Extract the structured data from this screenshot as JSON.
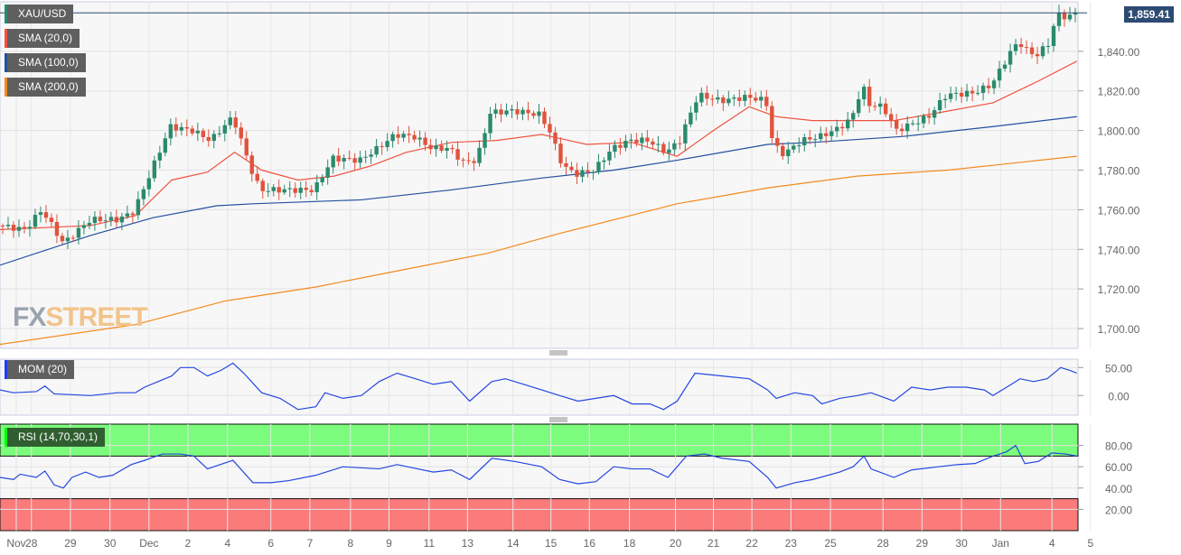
{
  "symbol": "XAU/USD",
  "current_price": "1,859.41",
  "logo_text": "FXSTREET",
  "legends": {
    "sma20": "SMA (20,0)",
    "sma100": "SMA (100,0)",
    "sma200": "SMA (200,0)",
    "mom": "MOM (20)",
    "rsi": "RSI (14,70,30,1)"
  },
  "colors": {
    "up": "#2b8a6e",
    "down": "#e0533d",
    "sma20": "#ef5340",
    "sma100": "#2450a0",
    "sma200": "#f38a1e",
    "mom": "#2447e0",
    "rsi": "#2447e0",
    "rsi_over": "#7cfc7c",
    "rsi_under": "#fb7a7a"
  },
  "chart_data": [
    {
      "type": "candlestick",
      "title": "XAU/USD",
      "ylim": [
        1690,
        1865
      ],
      "xlim": [
        0,
        199
      ],
      "y_ticks": [
        "1,700.00",
        "1,720.00",
        "1,740.00",
        "1,760.00",
        "1,780.00",
        "1,800.00",
        "1,820.00",
        "1,840.00"
      ],
      "y_tick_values": [
        1700,
        1720,
        1740,
        1760,
        1780,
        1800,
        1820,
        1840
      ],
      "close_path": [
        [
          0,
          1752
        ],
        [
          5,
          1750
        ],
        [
          8,
          1760
        ],
        [
          12,
          1743
        ],
        [
          17,
          1755
        ],
        [
          22,
          1755
        ],
        [
          25,
          1759
        ],
        [
          27.5,
          1775
        ],
        [
          31.7,
          1802
        ],
        [
          35.8,
          1800
        ],
        [
          39.2,
          1795
        ],
        [
          43.3,
          1807
        ],
        [
          46.7,
          1780
        ],
        [
          48.3,
          1770
        ],
        [
          53.3,
          1770
        ],
        [
          58.3,
          1770
        ],
        [
          61.7,
          1786
        ],
        [
          66.7,
          1785
        ],
        [
          70,
          1791
        ],
        [
          73.3,
          1798
        ],
        [
          76.7,
          1797
        ],
        [
          80,
          1791
        ],
        [
          83.3,
          1791
        ],
        [
          85.8,
          1784
        ],
        [
          88.3,
          1785
        ],
        [
          90.8,
          1809
        ],
        [
          95,
          1810
        ],
        [
          100,
          1808
        ],
        [
          101.7,
          1800
        ],
        [
          104.2,
          1782
        ],
        [
          106.7,
          1778
        ],
        [
          110,
          1780
        ],
        [
          113.3,
          1791
        ],
        [
          116.7,
          1795
        ],
        [
          120,
          1795
        ],
        [
          123.3,
          1789
        ],
        [
          125.8,
          1795
        ],
        [
          127.5,
          1807
        ],
        [
          129.2,
          1818
        ],
        [
          133.3,
          1815
        ],
        [
          138.3,
          1817
        ],
        [
          141.7,
          1815
        ],
        [
          143,
          1793
        ],
        [
          145,
          1788
        ],
        [
          148.3,
          1795
        ],
        [
          151.7,
          1797
        ],
        [
          155,
          1801
        ],
        [
          157.5,
          1806
        ],
        [
          159.5,
          1823
        ],
        [
          160.8,
          1813
        ],
        [
          163.3,
          1812
        ],
        [
          165.8,
          1800
        ],
        [
          168.3,
          1803
        ],
        [
          171.7,
          1807
        ],
        [
          175,
          1818
        ],
        [
          180,
          1819
        ],
        [
          183.3,
          1823
        ],
        [
          186.7,
          1839
        ],
        [
          188.3,
          1845
        ],
        [
          190,
          1840
        ],
        [
          191.7,
          1838
        ],
        [
          194.2,
          1845
        ],
        [
          195.3,
          1859
        ],
        [
          197.5,
          1857
        ],
        [
          198.8,
          1859.41
        ]
      ],
      "sma20": [
        [
          0,
          1750
        ],
        [
          16.7,
          1752
        ],
        [
          25,
          1757
        ],
        [
          31.7,
          1775
        ],
        [
          38.3,
          1779
        ],
        [
          43.3,
          1789
        ],
        [
          48.3,
          1780
        ],
        [
          55,
          1775
        ],
        [
          61.7,
          1777
        ],
        [
          68.3,
          1782
        ],
        [
          75,
          1789
        ],
        [
          83.3,
          1794
        ],
        [
          91.7,
          1795
        ],
        [
          100,
          1798
        ],
        [
          108.3,
          1793
        ],
        [
          116.7,
          1794
        ],
        [
          125,
          1787
        ],
        [
          131.7,
          1800
        ],
        [
          138.3,
          1812
        ],
        [
          143.3,
          1807
        ],
        [
          150,
          1805
        ],
        [
          158.3,
          1805
        ],
        [
          165,
          1805
        ],
        [
          173.3,
          1809
        ],
        [
          183.3,
          1814
        ],
        [
          191.7,
          1825
        ],
        [
          198.8,
          1835
        ]
      ],
      "sma100": [
        [
          0,
          1732
        ],
        [
          16.7,
          1747
        ],
        [
          28.3,
          1756
        ],
        [
          40,
          1762
        ],
        [
          46.7,
          1763
        ],
        [
          66.7,
          1765
        ],
        [
          83.3,
          1770
        ],
        [
          100,
          1776
        ],
        [
          113.3,
          1780
        ],
        [
          125,
          1785
        ],
        [
          141.7,
          1793
        ],
        [
          150,
          1794
        ],
        [
          166.7,
          1797
        ],
        [
          183.3,
          1802
        ],
        [
          198.8,
          1807
        ]
      ],
      "sma200": [
        [
          0,
          1692
        ],
        [
          25,
          1702
        ],
        [
          41.7,
          1714
        ],
        [
          58.3,
          1721
        ],
        [
          75,
          1730
        ],
        [
          90,
          1738
        ],
        [
          103.3,
          1748
        ],
        [
          125,
          1763
        ],
        [
          141.7,
          1771
        ],
        [
          158.3,
          1777
        ],
        [
          175,
          1780
        ],
        [
          198.8,
          1787
        ]
      ],
      "x_labels": [
        [
          "Nov",
          3
        ],
        [
          "28",
          5.8
        ],
        [
          "29",
          13
        ],
        [
          "30",
          20.3
        ],
        [
          "Dec",
          27.5
        ],
        [
          "2",
          34.7
        ],
        [
          "4",
          42
        ],
        [
          "6",
          50
        ],
        [
          "7",
          57.2
        ],
        [
          "8",
          64.7
        ],
        [
          "9",
          71.8
        ],
        [
          "11",
          79.2
        ],
        [
          "13",
          86.3
        ],
        [
          "14",
          94.7
        ],
        [
          "15",
          101.7
        ],
        [
          "16",
          108.8
        ],
        [
          "18",
          116.2
        ],
        [
          "20",
          124.7
        ],
        [
          "21",
          131.7
        ],
        [
          "22",
          138.8
        ],
        [
          "23",
          146
        ],
        [
          "25",
          153.3
        ],
        [
          "28",
          163
        ],
        [
          "29",
          170.2
        ],
        [
          "30",
          177.5
        ],
        [
          "Jan",
          184.7
        ],
        [
          "4",
          194.2
        ],
        [
          "5",
          201.3
        ]
      ]
    },
    {
      "type": "line",
      "title": "MOM (20)",
      "ylim": [
        -35,
        65
      ],
      "y_ticks": [
        "50.00",
        "0.00"
      ],
      "y_tick_values": [
        50,
        0
      ],
      "values": [
        [
          0,
          10
        ],
        [
          2.5,
          5
        ],
        [
          6.7,
          7
        ],
        [
          8.3,
          17
        ],
        [
          10,
          3
        ],
        [
          16.7,
          0
        ],
        [
          21.7,
          5
        ],
        [
          25,
          5
        ],
        [
          26.7,
          15
        ],
        [
          29.2,
          25
        ],
        [
          31.7,
          35
        ],
        [
          33.3,
          50
        ],
        [
          35.8,
          50
        ],
        [
          38.3,
          35
        ],
        [
          40.8,
          45
        ],
        [
          43,
          58
        ],
        [
          45,
          40
        ],
        [
          48.3,
          5
        ],
        [
          51.7,
          -5
        ],
        [
          55,
          -25
        ],
        [
          58.3,
          -20
        ],
        [
          60,
          5
        ],
        [
          63.3,
          -5
        ],
        [
          66.7,
          0
        ],
        [
          70,
          25
        ],
        [
          73.3,
          40
        ],
        [
          76.7,
          30
        ],
        [
          80,
          20
        ],
        [
          83.3,
          25
        ],
        [
          86.7,
          -10
        ],
        [
          90.8,
          25
        ],
        [
          93.3,
          30
        ],
        [
          96.7,
          20
        ],
        [
          100,
          10
        ],
        [
          103.3,
          0
        ],
        [
          106.7,
          -10
        ],
        [
          110,
          -5
        ],
        [
          113.3,
          0
        ],
        [
          116.7,
          -15
        ],
        [
          120,
          -15
        ],
        [
          122.5,
          -25
        ],
        [
          125,
          -10
        ],
        [
          128.3,
          40
        ],
        [
          133.3,
          35
        ],
        [
          138.3,
          30
        ],
        [
          141.7,
          10
        ],
        [
          143.3,
          -5
        ],
        [
          146.7,
          5
        ],
        [
          150,
          0
        ],
        [
          151.7,
          -15
        ],
        [
          155,
          -5
        ],
        [
          158.3,
          0
        ],
        [
          160.8,
          5
        ],
        [
          165,
          -10
        ],
        [
          168.3,
          15
        ],
        [
          171.7,
          10
        ],
        [
          175,
          15
        ],
        [
          178.3,
          15
        ],
        [
          181.7,
          10
        ],
        [
          183.3,
          0
        ],
        [
          186.7,
          20
        ],
        [
          188.3,
          30
        ],
        [
          190.8,
          25
        ],
        [
          193.3,
          30
        ],
        [
          195.8,
          50
        ],
        [
          197.5,
          45
        ],
        [
          198.8,
          40
        ]
      ]
    },
    {
      "type": "line",
      "title": "RSI (14,70,30,1)",
      "ylim": [
        0,
        100
      ],
      "y_ticks": [
        "80.00",
        "60.00",
        "40.00",
        "20.00"
      ],
      "y_tick_values": [
        80,
        60,
        40,
        20
      ],
      "levels": [
        70,
        30
      ],
      "values": [
        [
          0,
          50
        ],
        [
          2.5,
          48
        ],
        [
          3.7,
          53
        ],
        [
          6.7,
          50
        ],
        [
          8.3,
          56
        ],
        [
          10,
          43
        ],
        [
          11.7,
          40
        ],
        [
          13.3,
          50
        ],
        [
          15.8,
          55
        ],
        [
          18.3,
          50
        ],
        [
          20.8,
          52
        ],
        [
          24.2,
          62
        ],
        [
          26.7,
          66
        ],
        [
          30,
          72
        ],
        [
          33.3,
          72
        ],
        [
          35.8,
          70
        ],
        [
          38.3,
          58
        ],
        [
          43,
          66
        ],
        [
          46.7,
          45
        ],
        [
          50,
          45
        ],
        [
          53.3,
          47
        ],
        [
          58.3,
          52
        ],
        [
          63.3,
          60
        ],
        [
          70,
          58
        ],
        [
          73.3,
          62
        ],
        [
          80,
          55
        ],
        [
          83.3,
          57
        ],
        [
          86.7,
          48
        ],
        [
          90.8,
          68
        ],
        [
          95,
          65
        ],
        [
          100,
          60
        ],
        [
          103.3,
          48
        ],
        [
          106.7,
          44
        ],
        [
          110,
          46
        ],
        [
          113.3,
          60
        ],
        [
          116.7,
          58
        ],
        [
          120,
          58
        ],
        [
          123.3,
          50
        ],
        [
          126.7,
          70
        ],
        [
          130,
          72
        ],
        [
          133.3,
          68
        ],
        [
          138.3,
          65
        ],
        [
          141.7,
          50
        ],
        [
          143.3,
          40
        ],
        [
          146.7,
          45
        ],
        [
          150,
          48
        ],
        [
          155,
          55
        ],
        [
          157.5,
          60
        ],
        [
          159.5,
          70
        ],
        [
          160.8,
          58
        ],
        [
          165,
          50
        ],
        [
          168.3,
          57
        ],
        [
          173.3,
          60
        ],
        [
          176.7,
          62
        ],
        [
          180,
          63
        ],
        [
          183.3,
          70
        ],
        [
          185.8,
          74
        ],
        [
          187.5,
          80
        ],
        [
          189.2,
          63
        ],
        [
          191.7,
          65
        ],
        [
          194.2,
          73
        ],
        [
          196.7,
          72
        ],
        [
          198.8,
          70
        ]
      ]
    }
  ]
}
